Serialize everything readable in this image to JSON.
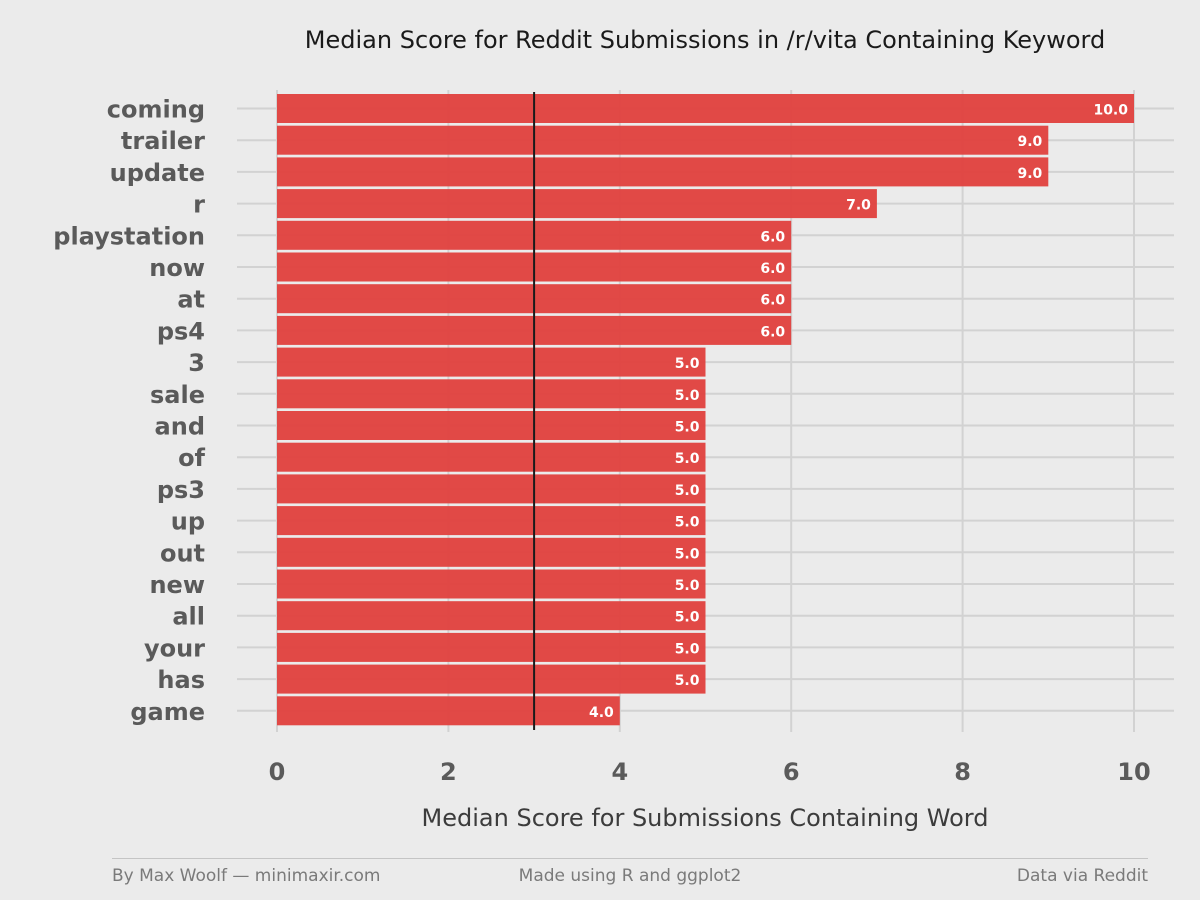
{
  "chart_data": {
    "type": "bar",
    "orientation": "horizontal",
    "title": "Median Score for Reddit Submissions in /r/vita Containing Keyword",
    "xlabel": "Median Score for Submissions Containing Word",
    "ylabel": "",
    "categories": [
      "coming",
      "trailer",
      "update",
      "r",
      "playstation",
      "now",
      "at",
      "ps4",
      "3",
      "sale",
      "and",
      "of",
      "ps3",
      "up",
      "out",
      "new",
      "all",
      "your",
      "has",
      "game"
    ],
    "values": [
      10.0,
      9.0,
      9.0,
      7.0,
      6.0,
      6.0,
      6.0,
      6.0,
      5.0,
      5.0,
      5.0,
      5.0,
      5.0,
      5.0,
      5.0,
      5.0,
      5.0,
      5.0,
      5.0,
      4.0
    ],
    "value_labels": [
      "10.0",
      "9.0",
      "9.0",
      "7.0",
      "6.0",
      "6.0",
      "6.0",
      "6.0",
      "5.0",
      "5.0",
      "5.0",
      "5.0",
      "5.0",
      "5.0",
      "5.0",
      "5.0",
      "5.0",
      "5.0",
      "5.0",
      "4.0"
    ],
    "xlim": [
      0,
      10
    ],
    "xticks": [
      0,
      2,
      4,
      6,
      8,
      10
    ],
    "reference_line": 3,
    "grid": true,
    "bar_color": "#e0403d",
    "background_color": "#ebebeb"
  },
  "footer": {
    "left": "By Max Woolf — minimaxir.com",
    "center": "Made using R and ggplot2",
    "right": "Data via Reddit"
  }
}
